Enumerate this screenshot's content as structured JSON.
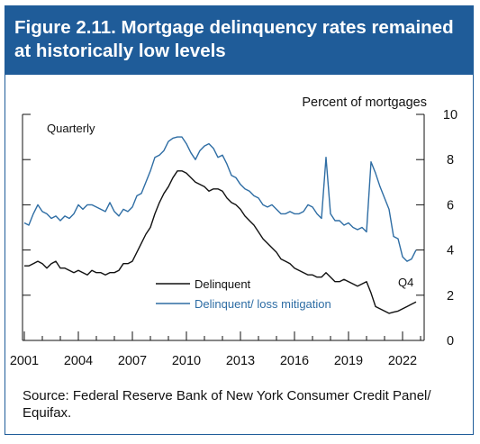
{
  "figure": {
    "title": "Figure 2.11. Mortgage delinquency rates remained at historically low levels",
    "source": "Source: Federal Reserve Bank of New York Consumer Credit Panel/ Equifax."
  },
  "colors": {
    "header_bg": "#1f5c99",
    "delinquent": "#111111",
    "loss_mitigation": "#2e6da4"
  },
  "chart_data": {
    "type": "line",
    "title": "",
    "ylabel": "Percent of mortgages",
    "frequency_note": "Quarterly",
    "end_label": "Q4",
    "xlim": [
      2000.9,
      2023.2
    ],
    "ylim": [
      0,
      10
    ],
    "yticks": [
      "0",
      "2",
      "4",
      "6",
      "8",
      "10"
    ],
    "ytick_values": [
      0,
      2,
      4,
      6,
      8,
      10
    ],
    "xticks": [
      "2001",
      "2004",
      "2007",
      "2010",
      "2013",
      "2016",
      "2019",
      "2022"
    ],
    "xtick_values": [
      2001,
      2004,
      2007,
      2010,
      2013,
      2016,
      2019,
      2022
    ],
    "grid": false,
    "legend_position": "inside bottom-left",
    "series": [
      {
        "name": "Delinquent",
        "color": "#111111",
        "points": [
          [
            2001.0,
            3.3
          ],
          [
            2001.25,
            3.3
          ],
          [
            2001.5,
            3.4
          ],
          [
            2001.75,
            3.5
          ],
          [
            2002.0,
            3.4
          ],
          [
            2002.25,
            3.2
          ],
          [
            2002.5,
            3.4
          ],
          [
            2002.75,
            3.5
          ],
          [
            2003.0,
            3.2
          ],
          [
            2003.25,
            3.2
          ],
          [
            2003.5,
            3.1
          ],
          [
            2003.75,
            3.0
          ],
          [
            2004.0,
            3.1
          ],
          [
            2004.25,
            3.0
          ],
          [
            2004.5,
            2.9
          ],
          [
            2004.75,
            3.1
          ],
          [
            2005.0,
            3.0
          ],
          [
            2005.25,
            3.0
          ],
          [
            2005.5,
            2.9
          ],
          [
            2005.75,
            3.0
          ],
          [
            2006.0,
            3.0
          ],
          [
            2006.25,
            3.1
          ],
          [
            2006.5,
            3.4
          ],
          [
            2006.75,
            3.4
          ],
          [
            2007.0,
            3.5
          ],
          [
            2007.25,
            3.9
          ],
          [
            2007.5,
            4.3
          ],
          [
            2007.75,
            4.7
          ],
          [
            2008.0,
            5.0
          ],
          [
            2008.25,
            5.6
          ],
          [
            2008.5,
            6.1
          ],
          [
            2008.75,
            6.5
          ],
          [
            2009.0,
            6.8
          ],
          [
            2009.25,
            7.2
          ],
          [
            2009.5,
            7.5
          ],
          [
            2009.75,
            7.5
          ],
          [
            2010.0,
            7.4
          ],
          [
            2010.25,
            7.2
          ],
          [
            2010.5,
            7.0
          ],
          [
            2010.75,
            6.9
          ],
          [
            2011.0,
            6.8
          ],
          [
            2011.25,
            6.6
          ],
          [
            2011.5,
            6.7
          ],
          [
            2011.75,
            6.7
          ],
          [
            2012.0,
            6.6
          ],
          [
            2012.25,
            6.3
          ],
          [
            2012.5,
            6.1
          ],
          [
            2012.75,
            6.0
          ],
          [
            2013.0,
            5.8
          ],
          [
            2013.25,
            5.5
          ],
          [
            2013.5,
            5.3
          ],
          [
            2013.75,
            5.1
          ],
          [
            2014.0,
            4.8
          ],
          [
            2014.25,
            4.5
          ],
          [
            2014.5,
            4.3
          ],
          [
            2014.75,
            4.1
          ],
          [
            2015.0,
            3.9
          ],
          [
            2015.25,
            3.6
          ],
          [
            2015.5,
            3.5
          ],
          [
            2015.75,
            3.4
          ],
          [
            2016.0,
            3.2
          ],
          [
            2016.25,
            3.1
          ],
          [
            2016.5,
            3.0
          ],
          [
            2016.75,
            2.9
          ],
          [
            2017.0,
            2.9
          ],
          [
            2017.25,
            2.8
          ],
          [
            2017.5,
            2.8
          ],
          [
            2017.75,
            3.0
          ],
          [
            2018.0,
            2.8
          ],
          [
            2018.25,
            2.6
          ],
          [
            2018.5,
            2.6
          ],
          [
            2018.75,
            2.7
          ],
          [
            2019.0,
            2.6
          ],
          [
            2019.25,
            2.5
          ],
          [
            2019.5,
            2.4
          ],
          [
            2019.75,
            2.5
          ],
          [
            2020.0,
            2.6
          ],
          [
            2020.25,
            2.1
          ],
          [
            2020.5,
            1.5
          ],
          [
            2020.75,
            1.4
          ],
          [
            2021.0,
            1.3
          ],
          [
            2021.25,
            1.2
          ],
          [
            2021.5,
            1.25
          ],
          [
            2021.75,
            1.3
          ],
          [
            2022.0,
            1.4
          ],
          [
            2022.25,
            1.5
          ],
          [
            2022.5,
            1.6
          ],
          [
            2022.75,
            1.7
          ]
        ]
      },
      {
        "name": "Delinquent/ loss mitigation",
        "color": "#2e6da4",
        "points": [
          [
            2001.0,
            5.2
          ],
          [
            2001.25,
            5.1
          ],
          [
            2001.5,
            5.6
          ],
          [
            2001.75,
            6.0
          ],
          [
            2002.0,
            5.7
          ],
          [
            2002.25,
            5.6
          ],
          [
            2002.5,
            5.4
          ],
          [
            2002.75,
            5.5
          ],
          [
            2003.0,
            5.3
          ],
          [
            2003.25,
            5.5
          ],
          [
            2003.5,
            5.4
          ],
          [
            2003.75,
            5.6
          ],
          [
            2004.0,
            6.0
          ],
          [
            2004.25,
            5.8
          ],
          [
            2004.5,
            6.0
          ],
          [
            2004.75,
            6.0
          ],
          [
            2005.0,
            5.9
          ],
          [
            2005.25,
            5.8
          ],
          [
            2005.5,
            5.7
          ],
          [
            2005.75,
            6.1
          ],
          [
            2006.0,
            5.7
          ],
          [
            2006.25,
            5.5
          ],
          [
            2006.5,
            5.8
          ],
          [
            2006.75,
            5.7
          ],
          [
            2007.0,
            5.9
          ],
          [
            2007.25,
            6.4
          ],
          [
            2007.5,
            6.5
          ],
          [
            2007.75,
            7.0
          ],
          [
            2008.0,
            7.5
          ],
          [
            2008.25,
            8.1
          ],
          [
            2008.5,
            8.2
          ],
          [
            2008.75,
            8.4
          ],
          [
            2009.0,
            8.8
          ],
          [
            2009.25,
            8.95
          ],
          [
            2009.5,
            9.0
          ],
          [
            2009.75,
            9.0
          ],
          [
            2010.0,
            8.7
          ],
          [
            2010.25,
            8.3
          ],
          [
            2010.5,
            8.0
          ],
          [
            2010.75,
            8.4
          ],
          [
            2011.0,
            8.6
          ],
          [
            2011.25,
            8.7
          ],
          [
            2011.5,
            8.5
          ],
          [
            2011.75,
            8.1
          ],
          [
            2012.0,
            8.2
          ],
          [
            2012.25,
            7.8
          ],
          [
            2012.5,
            7.3
          ],
          [
            2012.75,
            7.2
          ],
          [
            2013.0,
            6.9
          ],
          [
            2013.25,
            6.7
          ],
          [
            2013.5,
            6.6
          ],
          [
            2013.75,
            6.4
          ],
          [
            2014.0,
            6.3
          ],
          [
            2014.25,
            6.0
          ],
          [
            2014.5,
            5.9
          ],
          [
            2014.75,
            6.0
          ],
          [
            2015.0,
            5.8
          ],
          [
            2015.25,
            5.6
          ],
          [
            2015.5,
            5.6
          ],
          [
            2015.75,
            5.7
          ],
          [
            2016.0,
            5.6
          ],
          [
            2016.25,
            5.6
          ],
          [
            2016.5,
            5.7
          ],
          [
            2016.75,
            6.0
          ],
          [
            2017.0,
            5.9
          ],
          [
            2017.25,
            5.6
          ],
          [
            2017.5,
            5.4
          ],
          [
            2017.75,
            8.1
          ],
          [
            2018.0,
            5.6
          ],
          [
            2018.25,
            5.3
          ],
          [
            2018.5,
            5.3
          ],
          [
            2018.75,
            5.1
          ],
          [
            2019.0,
            5.2
          ],
          [
            2019.25,
            5.0
          ],
          [
            2019.5,
            4.9
          ],
          [
            2019.75,
            5.0
          ],
          [
            2020.0,
            4.8
          ],
          [
            2020.25,
            7.9
          ],
          [
            2020.5,
            7.4
          ],
          [
            2020.75,
            6.8
          ],
          [
            2021.0,
            6.3
          ],
          [
            2021.25,
            5.8
          ],
          [
            2021.5,
            4.6
          ],
          [
            2021.75,
            4.5
          ],
          [
            2022.0,
            3.7
          ],
          [
            2022.25,
            3.5
          ],
          [
            2022.5,
            3.6
          ],
          [
            2022.75,
            4.0
          ]
        ]
      }
    ]
  }
}
